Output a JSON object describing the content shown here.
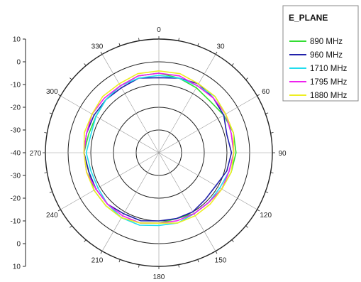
{
  "chart_data": {
    "type": "polar-line",
    "angle_direction": "clockwise",
    "zero_direction": "top",
    "angle_labels": [
      "0",
      "30",
      "60",
      "90",
      "120",
      "150",
      "180",
      "210",
      "240",
      "270",
      "300",
      "330"
    ],
    "radial_ticks": [
      "10",
      "0",
      "-10",
      "-20",
      "-30",
      "-40",
      "-30",
      "-20",
      "-10",
      "0",
      "10"
    ],
    "r_range": [
      -40,
      10
    ],
    "rings_db": [
      10,
      0,
      -10,
      -20,
      -30
    ],
    "legend": {
      "title": "E_PLANE",
      "placement": "top-right"
    },
    "angles_deg": [
      0,
      15,
      30,
      45,
      60,
      75,
      90,
      105,
      120,
      135,
      150,
      165,
      180,
      195,
      210,
      225,
      240,
      255,
      270,
      285,
      300,
      315,
      330,
      345
    ],
    "series": [
      {
        "name": "890 MHz",
        "color": "#33dd33",
        "values": [
          -5,
          -6,
          -7,
          -8,
          -7,
          -6,
          -6,
          -7,
          -8,
          -9,
          -9,
          -10,
          -9,
          -8,
          -7,
          -7,
          -7,
          -8,
          -7,
          -8,
          -8,
          -7,
          -6,
          -5
        ]
      },
      {
        "name": "960 MHz",
        "color": "#2222aa",
        "values": [
          -7,
          -6,
          -5,
          -6,
          -7,
          -9,
          -8,
          -9,
          -11,
          -11,
          -10,
          -10,
          -10,
          -9,
          -9,
          -8,
          -8,
          -8,
          -7,
          -7,
          -7,
          -7,
          -7,
          -6
        ]
      },
      {
        "name": "1710 MHz",
        "color": "#22ddee",
        "values": [
          -6,
          -6,
          -6,
          -5,
          -6,
          -7,
          -7,
          -8,
          -9,
          -9,
          -9,
          -8,
          -8,
          -7,
          -7,
          -8,
          -9,
          -9,
          -8,
          -9,
          -8,
          -7,
          -6,
          -6
        ]
      },
      {
        "name": "1795 MHz",
        "color": "#ee22ee",
        "values": [
          -5,
          -5,
          -6,
          -6,
          -6,
          -7,
          -7,
          -8,
          -8,
          -9,
          -9,
          -9,
          -9,
          -8,
          -8,
          -8,
          -8,
          -7,
          -7,
          -7,
          -6,
          -6,
          -6,
          -5
        ]
      },
      {
        "name": "1880 MHz",
        "color": "#eeee22",
        "values": [
          -4,
          -4,
          -5,
          -5,
          -6,
          -6,
          -7,
          -7,
          -8,
          -8,
          -8,
          -8,
          -9,
          -8,
          -7,
          -7,
          -7,
          -7,
          -7,
          -6,
          -6,
          -5,
          -5,
          -4
        ]
      }
    ]
  }
}
